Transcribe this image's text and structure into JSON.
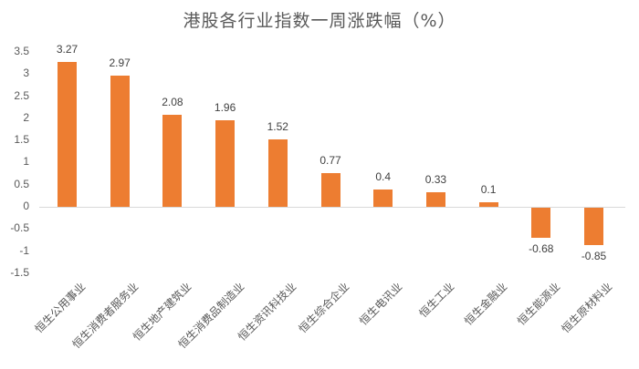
{
  "chart_data": {
    "type": "bar",
    "title": "港股各行业指数一周涨跌幅（%）",
    "xlabel": "",
    "ylabel": "",
    "ylim": [
      -1.5,
      3.5
    ],
    "yticks": [
      "3.5",
      "3",
      "2.5",
      "2",
      "1.5",
      "1",
      "0.5",
      "0",
      "-0.5",
      "-1",
      "-1.5"
    ],
    "grid": false,
    "legend": null,
    "bar_color": "#ed7d31",
    "categories": [
      "恒生公用事业",
      "恒生消费者服务业",
      "恒生地产建筑业",
      "恒生消费品制造业",
      "恒生资讯科技业",
      "恒生综合企业",
      "恒生电讯业",
      "恒生工业",
      "恒生金融业",
      "恒生能源业",
      "恒生原材料业"
    ],
    "values": [
      3.27,
      2.97,
      2.08,
      1.96,
      1.52,
      0.77,
      0.4,
      0.33,
      0.1,
      -0.68,
      -0.85
    ],
    "value_labels": [
      "3.27",
      "2.97",
      "2.08",
      "1.96",
      "1.52",
      "0.77",
      "0.4",
      "0.33",
      "0.1",
      "-0.68",
      "-0.85"
    ]
  }
}
